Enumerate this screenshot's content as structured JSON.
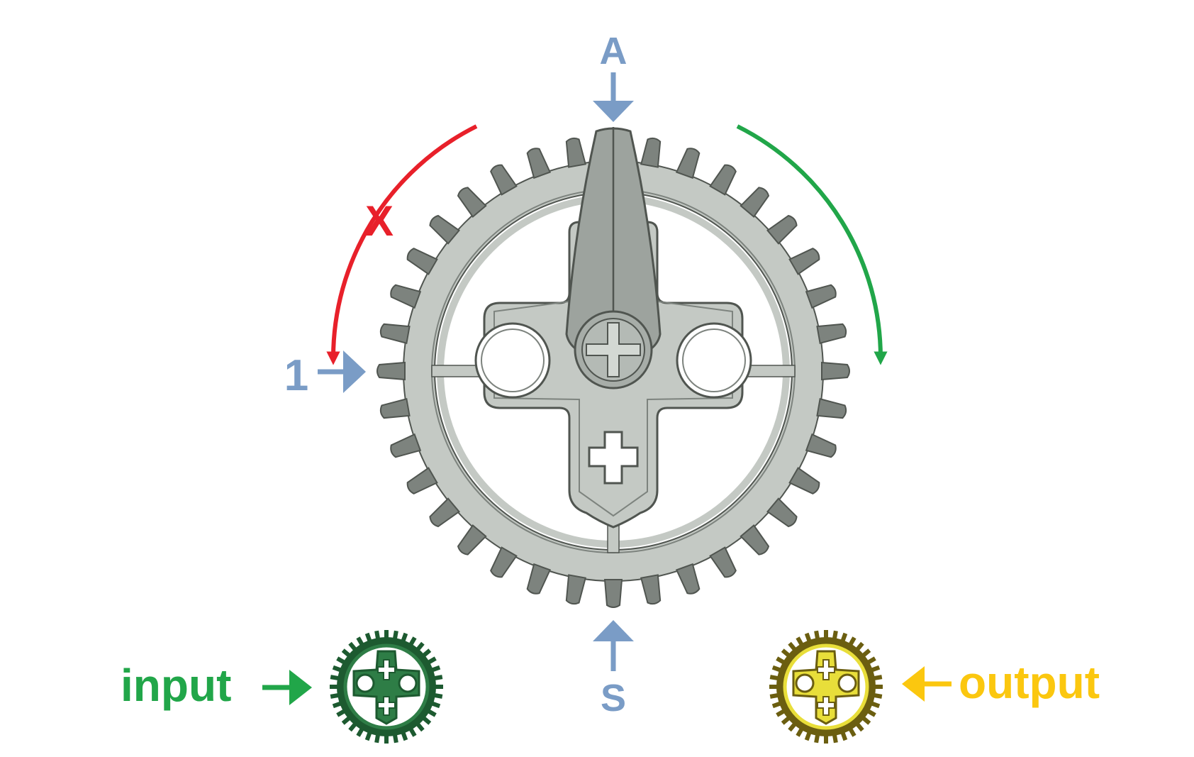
{
  "labels": {
    "top": "A",
    "bottom": "S",
    "left": "1",
    "cross": "X",
    "input": "input",
    "output": "output"
  },
  "colors": {
    "blue": "#7A9CC6",
    "red": "#E8202A",
    "green": "#21A649",
    "yellow": "#FBC70F",
    "gear_fill": "#C4C9C4",
    "gear_dark": "#7D837E",
    "gear_stroke": "#505550",
    "pointer": "#9DA39E",
    "input_gear": "#2E7D46",
    "output_gear": "#E8DE3A"
  },
  "gear": {
    "teeth": 36
  },
  "icons": {
    "main": "gear-icon",
    "input": "input-gear-icon",
    "output": "output-gear-icon",
    "pointer": "pointer-icon"
  }
}
